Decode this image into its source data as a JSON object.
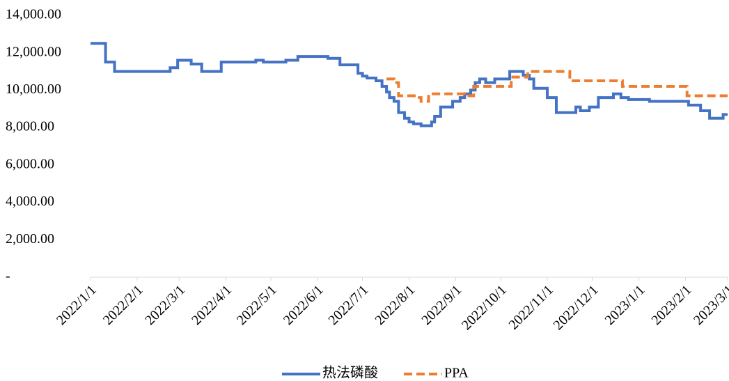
{
  "chart_data": {
    "type": "line",
    "ylim": [
      0,
      14000
    ],
    "yticks": [
      {
        "value": 0,
        "label": "-"
      },
      {
        "value": 2000,
        "label": "2,000.00"
      },
      {
        "value": 4000,
        "label": "4,000.00"
      },
      {
        "value": 6000,
        "label": "6,000.00"
      },
      {
        "value": 8000,
        "label": "8,000.00"
      },
      {
        "value": 10000,
        "label": "10,000.00"
      },
      {
        "value": 12000,
        "label": "12,000.00"
      },
      {
        "value": 14000,
        "label": "14,000.00"
      }
    ],
    "xlim": [
      "2022/1/1",
      "2023/3/1"
    ],
    "xticks": [
      "2022/1/1",
      "2022/2/1",
      "2022/3/1",
      "2022/4/1",
      "2022/5/1",
      "2022/6/1",
      "2022/7/1",
      "2022/8/1",
      "2022/9/1",
      "2022/10/1",
      "2022/11/1",
      "2022/12/1",
      "2023/1/1",
      "2023/2/1",
      "2023/3/1"
    ],
    "step": true,
    "series": [
      {
        "name": "热法磷酸",
        "color": "#4472c4",
        "dash": false,
        "x": [
          "2022/1/1",
          "2022/1/11",
          "2022/1/17",
          "2022/2/23",
          "2022/2/28",
          "2022/3/9",
          "2022/3/16",
          "2022/3/29",
          "2022/4/21",
          "2022/4/26",
          "2022/5/11",
          "2022/5/19",
          "2022/6/8",
          "2022/6/16",
          "2022/6/28",
          "2022/7/1",
          "2022/7/4",
          "2022/7/10",
          "2022/7/14",
          "2022/7/17",
          "2022/7/19",
          "2022/7/22",
          "2022/7/25",
          "2022/7/29",
          "2022/8/1",
          "2022/8/4",
          "2022/8/9",
          "2022/8/16",
          "2022/8/18",
          "2022/8/22",
          "2022/8/30",
          "2022/9/4",
          "2022/9/7",
          "2022/9/11",
          "2022/9/14",
          "2022/9/17",
          "2022/9/21",
          "2022/9/27",
          "2022/10/7",
          "2022/10/16",
          "2022/10/20",
          "2022/10/23",
          "2022/11/1",
          "2022/11/7",
          "2022/11/20",
          "2022/11/23",
          "2022/11/29",
          "2022/12/5",
          "2022/12/15",
          "2022/12/20",
          "2022/12/25",
          "2023/1/8",
          "2023/2/3",
          "2023/2/11",
          "2023/2/17",
          "2023/2/26",
          "2023/3/1"
        ],
        "values": [
          12500,
          11500,
          11000,
          11200,
          11600,
          11400,
          11000,
          11500,
          11600,
          11500,
          11600,
          11800,
          11700,
          11350,
          10900,
          10750,
          10650,
          10500,
          10200,
          9900,
          9600,
          9400,
          8800,
          8500,
          8300,
          8200,
          8100,
          8300,
          8600,
          9100,
          9400,
          9600,
          9800,
          10000,
          10400,
          10600,
          10400,
          10600,
          11000,
          10800,
          10600,
          10100,
          9600,
          8800,
          9100,
          8900,
          9100,
          9600,
          9800,
          9600,
          9500,
          9400,
          9200,
          8900,
          8500,
          8700,
          8700
        ]
      },
      {
        "name": "PPA",
        "color": "#ed7d31",
        "dash": true,
        "x": [
          "2022/7/17",
          "2022/7/22",
          "2022/7/25",
          "2022/8/6",
          "2022/8/9",
          "2022/8/14",
          "2022/9/7",
          "2022/9/13",
          "2022/10/8",
          "2022/10/19",
          "2022/11/16",
          "2022/12/21",
          "2023/2/2",
          "2023/3/1"
        ],
        "values": [
          10600,
          10400,
          9700,
          9600,
          9400,
          9800,
          9700,
          10200,
          10700,
          11000,
          10500,
          10200,
          9700,
          9700
        ]
      }
    ]
  }
}
